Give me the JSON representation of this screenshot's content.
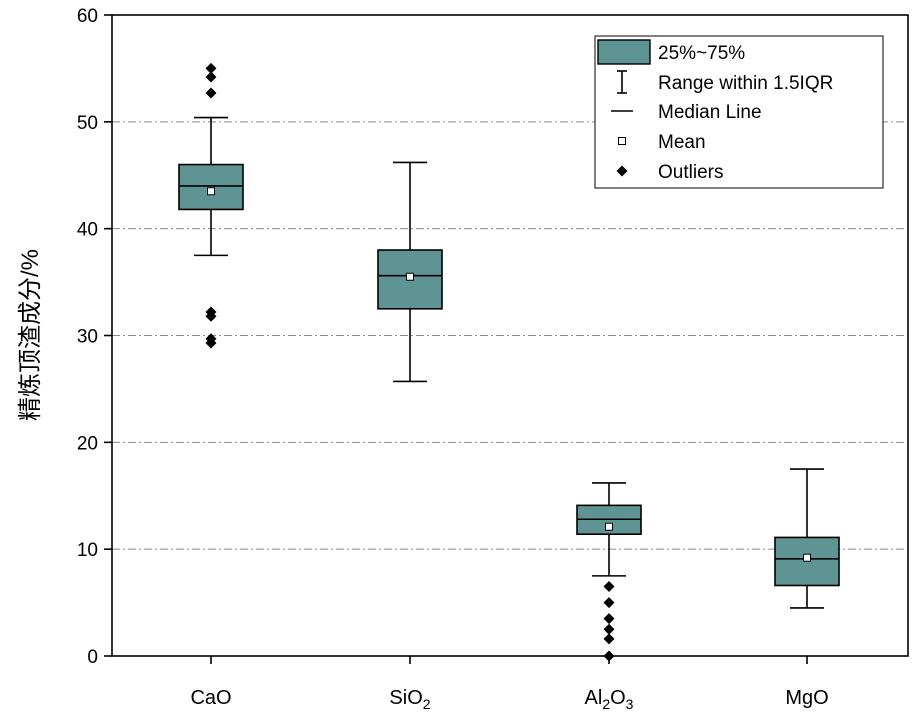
{
  "chart_data": {
    "type": "box",
    "ylabel": "精炼顶渣成分/%",
    "xlabel": "",
    "ylim": [
      0,
      60
    ],
    "yticks": [
      "0",
      "10",
      "20",
      "30",
      "40",
      "50",
      "60"
    ],
    "grid": "horizontal dash-dot",
    "legend_position": "top-right",
    "legend": [
      {
        "key": "box",
        "label": "25%~75%"
      },
      {
        "key": "whisker",
        "label": "Range within 1.5IQR"
      },
      {
        "key": "median",
        "label": "Median Line"
      },
      {
        "key": "mean",
        "label": "Mean"
      },
      {
        "key": "outlier",
        "label": "Outliers"
      }
    ],
    "categories": [
      {
        "label": "CaO",
        "base": "CaO",
        "sub1": "",
        "mid": "",
        "sub2": "",
        "q1": 41.8,
        "median": 44.0,
        "q3": 46.0,
        "whisker_low": 37.5,
        "whisker_high": 50.4,
        "mean": 43.5,
        "outliers": [
          55.0,
          54.2,
          52.7,
          32.2,
          31.8,
          29.7,
          29.3
        ]
      },
      {
        "label": "SiO2",
        "base": "SiO",
        "sub1": "2",
        "mid": "",
        "sub2": "",
        "q1": 32.5,
        "median": 35.6,
        "q3": 38.0,
        "whisker_low": 25.7,
        "whisker_high": 46.2,
        "mean": 35.5,
        "outliers": []
      },
      {
        "label": "Al2O3",
        "base": "Al",
        "sub1": "2",
        "mid": "O",
        "sub2": "3",
        "q1": 11.4,
        "median": 12.8,
        "q3": 14.1,
        "whisker_low": 7.5,
        "whisker_high": 16.2,
        "mean": 12.1,
        "outliers": [
          6.5,
          5.0,
          3.5,
          2.5,
          1.6,
          0.0
        ]
      },
      {
        "label": "MgO",
        "base": "MgO",
        "sub1": "",
        "mid": "",
        "sub2": "",
        "q1": 6.6,
        "median": 9.1,
        "q3": 11.1,
        "whisker_low": 4.5,
        "whisker_high": 17.5,
        "mean": 9.2,
        "outliers": []
      }
    ],
    "colors": {
      "box_fill": "#5f9494",
      "box_stroke": "#000000",
      "grid": "#8a8a8a"
    }
  }
}
